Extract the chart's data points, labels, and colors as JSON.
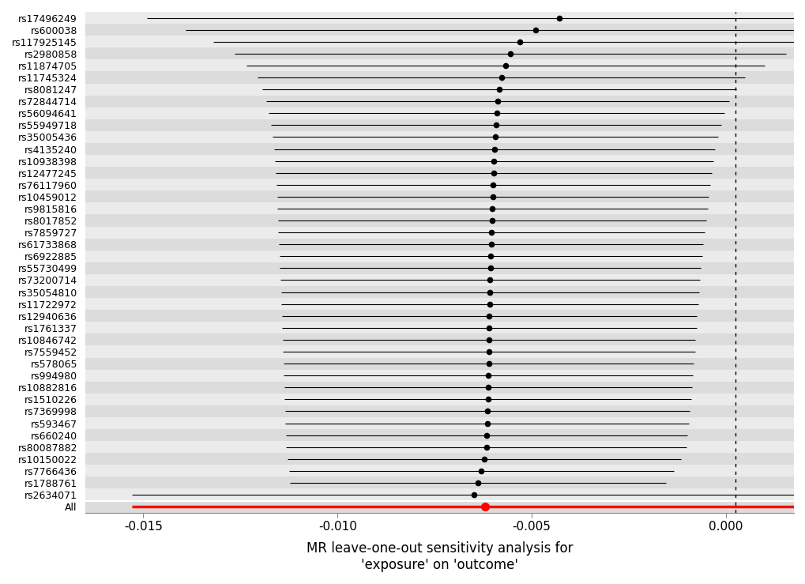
{
  "snps": [
    "rs17496249",
    "rs600038",
    "rs117925145",
    "rs2980858",
    "rs11874705",
    "rs11745324",
    "rs8081247",
    "rs72844714",
    "rs56094641",
    "rs55949718",
    "rs35005436",
    "rs4135240",
    "rs10938398",
    "rs12477245",
    "rs76117960",
    "rs10459012",
    "rs9815816",
    "rs8017852",
    "rs7859727",
    "rs61733868",
    "rs6922885",
    "rs55730499",
    "rs73200714",
    "rs35054810",
    "rs11722972",
    "rs12940636",
    "rs1761337",
    "rs10846742",
    "rs7559452",
    "rs578065",
    "rs994980",
    "rs10882816",
    "rs1510226",
    "rs7369998",
    "rs593467",
    "rs660240",
    "rs80087882",
    "rs10150022",
    "rs7766436",
    "rs1788761",
    "rs2634071"
  ],
  "estimates": [
    -0.0043,
    -0.0049,
    -0.0053,
    -0.00555,
    -0.00568,
    -0.00578,
    -0.00583,
    -0.00587,
    -0.0059,
    -0.00592,
    -0.00594,
    -0.00596,
    -0.00597,
    -0.00598,
    -0.00599,
    -0.006,
    -0.00601,
    -0.00602,
    -0.00603,
    -0.00604,
    -0.00605,
    -0.00606,
    -0.00607,
    -0.00607,
    -0.00608,
    -0.00609,
    -0.00609,
    -0.0061,
    -0.0061,
    -0.00611,
    -0.00612,
    -0.00612,
    -0.00613,
    -0.00614,
    -0.00615,
    -0.00616,
    -0.00617,
    -0.00622,
    -0.0063,
    -0.00638,
    -0.00648
  ],
  "ci_lower": [
    -0.0149,
    -0.0139,
    -0.0132,
    -0.01265,
    -0.01235,
    -0.01205,
    -0.01193,
    -0.01183,
    -0.01177,
    -0.01172,
    -0.01168,
    -0.01164,
    -0.01162,
    -0.0116,
    -0.01158,
    -0.01156,
    -0.01155,
    -0.01153,
    -0.01152,
    -0.0115,
    -0.01149,
    -0.01148,
    -0.01146,
    -0.01145,
    -0.01144,
    -0.01143,
    -0.01142,
    -0.01141,
    -0.0114,
    -0.01139,
    -0.01138,
    -0.01137,
    -0.01136,
    -0.01135,
    -0.01134,
    -0.01133,
    -0.01132,
    -0.01129,
    -0.01125,
    -0.01122,
    -0.0153
  ],
  "ci_upper": [
    0.0063,
    0.0041,
    0.0026,
    0.00155,
    0.00099,
    0.00049,
    0.00027,
    9e-05,
    -3e-05,
    -0.00012,
    -0.0002,
    -0.00028,
    -0.00032,
    -0.00036,
    -0.0004,
    -0.00044,
    -0.00047,
    -0.00051,
    -0.00054,
    -0.00058,
    -0.00061,
    -0.00064,
    -0.00068,
    -0.00069,
    -0.00072,
    -0.00075,
    -0.00076,
    -0.00079,
    -0.0008,
    -0.00083,
    -0.00086,
    -0.00087,
    -0.0009,
    -0.00093,
    -0.00096,
    -0.00099,
    -0.00102,
    -0.00115,
    -0.00135,
    -0.00154,
    0.0029
  ],
  "all_estimate": -0.0062,
  "all_ci_lower": -0.0153,
  "all_ci_upper": 0.0029,
  "xlim": [
    -0.0165,
    0.00175
  ],
  "xticks": [
    -0.015,
    -0.01,
    -0.005,
    0.0
  ],
  "xticklabels": [
    "-0.015",
    "-0.010",
    "-0.005",
    "0.000"
  ],
  "xlabel": "MR leave-one-out sensitivity analysis for\n'exposure' on 'outcome'",
  "dotted_line_x": 0.00025,
  "bg_color": "#ebebeb",
  "stripe_color_light": "#ebebeb",
  "stripe_color_dark": "#dcdcdc",
  "tick_fontsize": 11,
  "label_fontsize": 12,
  "snp_fontsize": 9
}
